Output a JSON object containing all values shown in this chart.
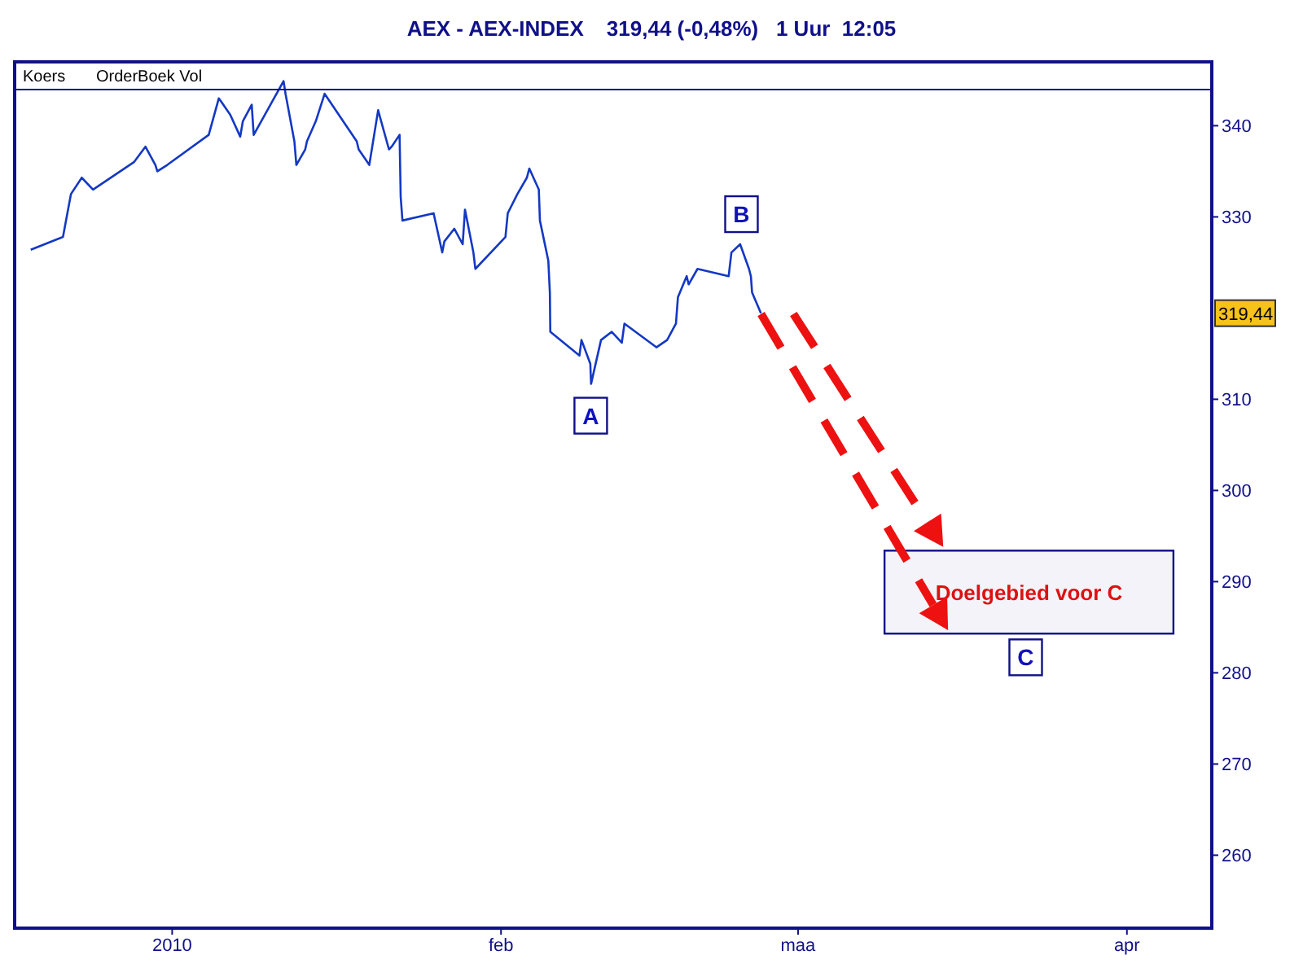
{
  "chart_data": {
    "type": "line",
    "title": "AEX - AEX-INDEX",
    "subtitle": "319,44 (-0,48%)   1 Uur  12:05",
    "color": "#1438c4",
    "x": [
      "2009-12-18T16:00",
      "2009-12-21T17:00",
      "2009-12-22T11:00",
      "2009-12-23T11:30",
      "2009-12-24T13:00",
      "2009-12-28T09:30",
      "2009-12-29T11:30",
      "2009-12-30T10:00",
      "2009-12-30T14:30",
      "2009-12-31T13:00",
      "2010-01-04T10:45",
      "2010-01-05T09:30",
      "2010-01-05T15:30",
      "2010-01-06T11:30",
      "2010-01-07T10:00",
      "2010-01-07T16:00",
      "2010-01-08T12:00",
      "2010-01-08T16:30",
      "2010-01-11T12:00",
      "2010-01-11T16:30",
      "2010-01-12T12:30",
      "2010-01-12T17:00",
      "2010-01-13T13:00",
      "2010-01-13T17:00",
      "2010-01-14T13:00",
      "2010-01-15T09:00",
      "2010-01-18T09:30",
      "2010-01-18T14:00",
      "2010-01-19T14:00",
      "2010-01-20T10:00",
      "2010-01-20T14:30",
      "2010-01-21T10:30",
      "2010-01-21T16:30",
      "2010-01-22T10:30",
      "2010-01-22T13:00",
      "2010-01-22T17:00",
      "2010-01-25T15:30",
      "2010-01-26T11:00",
      "2010-01-26T15:45",
      "2010-01-27T14:15",
      "2010-01-28T09:15",
      "2010-01-28T14:30",
      "2010-01-29T09:30",
      "2010-01-29T14:00",
      "2010-02-01T10:00",
      "2010-02-01T15:15",
      "2010-02-02T13:00",
      "2010-02-03T10:30",
      "2010-02-03T16:00",
      "2010-02-04T13:30",
      "2010-02-04T16:00",
      "2010-02-05T11:00",
      "2010-02-05T14:30",
      "2010-02-05T15:30",
      "2010-02-08T09:30",
      "2010-02-08T14:00",
      "2010-02-09T10:00",
      "2010-02-09T11:45",
      "2010-02-10T10:15",
      "2010-02-11T10:30",
      "2010-02-12T09:15",
      "2010-02-12T15:15",
      "2010-02-15T15:30",
      "2010-02-16T15:45",
      "2010-02-17T11:45",
      "2010-02-17T16:15",
      "2010-02-18T12:00",
      "2010-02-18T16:30",
      "2010-02-19T12:30",
      "2010-02-22T11:00",
      "2010-02-22T17:15",
      "2010-02-23T13:00",
      "2010-02-24T09:00",
      "2010-02-24T13:15",
      "2010-02-24T16:00",
      "2010-02-25T12:00"
    ],
    "values": [
      326.4,
      327.8,
      332.5,
      334.3,
      333,
      336,
      337.7,
      335.7,
      335,
      335.7,
      339,
      343,
      342.6,
      341.2,
      338.8,
      340.5,
      342.3,
      339,
      344.9,
      343.5,
      338.3,
      335.7,
      337.4,
      338.3,
      340.5,
      343.5,
      338.3,
      337.4,
      335.7,
      341.7,
      340.9,
      337.4,
      337.7,
      339,
      332.2,
      329.6,
      330.4,
      326.1,
      327.3,
      328.7,
      327,
      330.8,
      326.1,
      324.3,
      327.8,
      330.4,
      332.5,
      334.3,
      335.3,
      333,
      329.6,
      325.2,
      321.7,
      317.4,
      314.8,
      316.5,
      313.9,
      311.7,
      316.5,
      317.4,
      316.2,
      318.3,
      315.7,
      316.5,
      318.3,
      321.2,
      323.5,
      322.6,
      324.3,
      323.5,
      326.1,
      327,
      324.3,
      323.5,
      321.7,
      319.44
    ],
    "xlim": [
      "2009-12-17",
      "2010-04-09"
    ],
    "xticks": [
      {
        "value": "2010-01-01",
        "label": "2010"
      },
      {
        "value": "2010-02-01",
        "label": "feb"
      },
      {
        "value": "2010-03-01",
        "label": "maa"
      },
      {
        "value": "2010-04-01",
        "label": "apr"
      }
    ],
    "ylim": [
      252,
      347
    ],
    "yticks": [
      260,
      270,
      280,
      290,
      300,
      310,
      330,
      340
    ],
    "bands": [
      {
        "axis": "y",
        "from": 284.3,
        "to": 293.4,
        "label": "Doelgebied voor C",
        "color": "#10108a"
      }
    ],
    "annotations": [
      "Koers",
      "OrderBoek Vol",
      {
        "text": "A",
        "x": "2010-02-09T11:00",
        "y": 308.2
      },
      {
        "text": "B",
        "x": "2010-02-23T16:00",
        "y": 330.3
      },
      {
        "text": "C",
        "x": "2010-03-22T11:00",
        "y": 281.7
      },
      {
        "text": "319,44",
        "y": 319.44
      }
    ]
  }
}
